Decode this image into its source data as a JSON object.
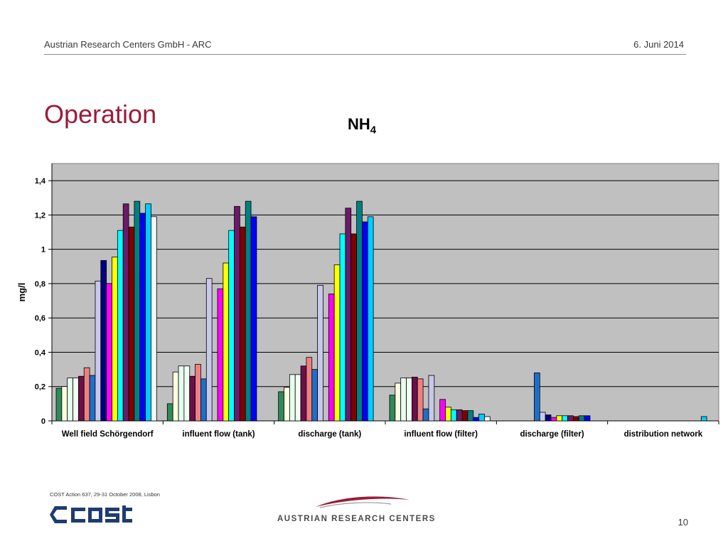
{
  "header": {
    "org": "Austrian Research Centers GmbH - ARC",
    "date": "6. Juni 2014"
  },
  "slide_title": "Operation",
  "chart_title": {
    "main": "NH",
    "sub": "4"
  },
  "footer": {
    "note": "COST Action 637, 29-31 October 2008, Lisbon",
    "page": "10",
    "arc_text": "AUSTRIAN RESEARCH CENTERS"
  },
  "logos": {
    "left": "cost-logo",
    "right": "arc-swoosh-logo"
  },
  "colors": {
    "plot_bg": "#c0c0c0",
    "title": "#9b1c3a",
    "bars": [
      "#2e8b57",
      "#ffffe0",
      "#e6fff0",
      "#f0fff0",
      "#6b0f4b",
      "#f08080",
      "#1e6fc8",
      "#c8c8ec",
      "#000080",
      "#ff00ff",
      "#ffff00",
      "#00ffff",
      "#6b1a6b",
      "#800000",
      "#008080",
      "#0000ff",
      "#00ccff",
      "#f0f8ff"
    ]
  },
  "chart_data": {
    "type": "bar",
    "ylabel": "mg/l",
    "ylim": [
      0,
      1.5
    ],
    "yticks": [
      "0",
      "0,2",
      "0,4",
      "0,6",
      "0,8",
      "1",
      "1,2",
      "1,4"
    ],
    "ytick_values": [
      0,
      0.2,
      0.4,
      0.6,
      0.8,
      1.0,
      1.2,
      1.4
    ],
    "grid": true,
    "categories": [
      "Well field Schörgendorf",
      "influent flow (tank)",
      "discharge (tank)",
      "influent flow (filter)",
      "discharge (filter)",
      "distribution network"
    ],
    "groups": [
      [
        0.19,
        0.2,
        0.25,
        0.25,
        0.26,
        0.31,
        0.265,
        0.815,
        0.935,
        0.8,
        0.955,
        1.11,
        1.265,
        1.13,
        1.28,
        1.21,
        1.265,
        1.19
      ],
      [
        0.1,
        0.285,
        0.32,
        0.32,
        0.26,
        0.33,
        0.245,
        0.83,
        0,
        0.77,
        0.92,
        1.11,
        1.25,
        1.13,
        1.28,
        1.19,
        0,
        0
      ],
      [
        0.17,
        0.195,
        0.27,
        0.27,
        0.32,
        0.37,
        0.3,
        0.79,
        0,
        0.74,
        0.91,
        1.09,
        1.24,
        1.09,
        1.28,
        1.16,
        1.19,
        0
      ],
      [
        0.15,
        0.22,
        0.25,
        0.25,
        0.255,
        0.245,
        0.07,
        0.265,
        0,
        0.125,
        0.08,
        0.065,
        0.065,
        0.06,
        0.06,
        0.02,
        0.04,
        0.025
      ],
      [
        0,
        0,
        0,
        0,
        0,
        0,
        0.28,
        0.05,
        0.035,
        0.02,
        0.03,
        0.03,
        0.03,
        0.025,
        0.03,
        0.03,
        0,
        0
      ],
      [
        0,
        0,
        0,
        0,
        0,
        0,
        0,
        0,
        0,
        0,
        0,
        0,
        0,
        0,
        0,
        0,
        0.025,
        0
      ]
    ]
  }
}
